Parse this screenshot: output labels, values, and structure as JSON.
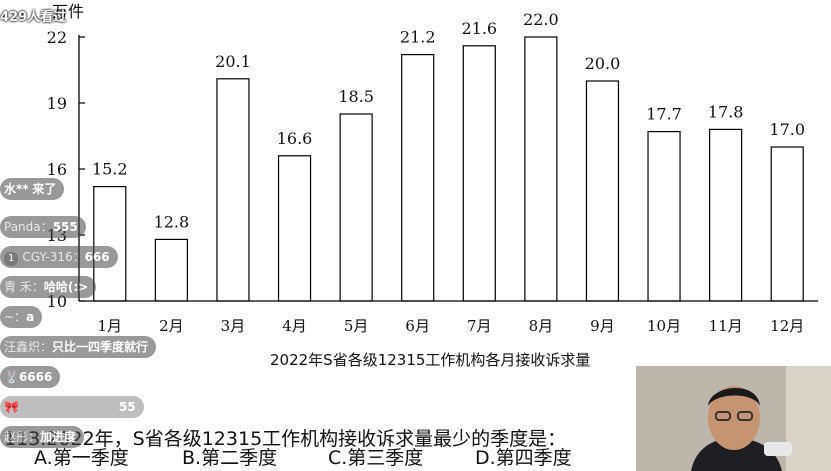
{
  "chart_data": {
    "type": "bar",
    "ylabel": "万件",
    "categories": [
      "1月",
      "2月",
      "3月",
      "4月",
      "5月",
      "6月",
      "7月",
      "8月",
      "9月",
      "10月",
      "11月",
      "12月"
    ],
    "values": [
      15.2,
      12.8,
      20.1,
      16.6,
      18.5,
      21.2,
      21.6,
      22.0,
      20.0,
      17.7,
      17.8,
      17.0
    ],
    "value_labels": [
      "15.2",
      "12.8",
      "20.1",
      "16.6",
      "18.5",
      "21.2",
      "21.6",
      "22.0",
      "20.0",
      "17.7",
      "17.8",
      "17.0"
    ],
    "yticks": [
      "10",
      "13",
      "16",
      "19",
      "22"
    ],
    "ylim": [
      10,
      22
    ],
    "grid": false,
    "bar_fill": "#ffffff",
    "bar_stroke": "#000000"
  },
  "caption": "2022年S省各级12315工作机构各月接收诉求量",
  "question": "113.2022年，S省各级12315工作机构接收诉求量最少的季度是：",
  "options": [
    "A.第一季度",
    "B.第二季度",
    "C.第三季度",
    "D.第四季度"
  ],
  "stream": {
    "viewers": "429人看过",
    "danmaku": [
      {
        "nick": "水**",
        "msg": "来了"
      },
      {
        "nick": "Panda：",
        "msg": "555"
      },
      {
        "badge": "1",
        "nick": "CGY-316：",
        "msg": "666"
      },
      {
        "nick": "青 禾：",
        "msg": "哈哈(:>"
      },
      {
        "nick": "~：",
        "msg": "a"
      },
      {
        "nick": "汪鑫炽：",
        "msg": "只比一四季度就行"
      },
      {
        "nick": "",
        "msg": "6666"
      },
      {
        "nick": "",
        "msg": "55"
      },
      {
        "nick": "赵彤：",
        "msg": "加进度"
      }
    ]
  }
}
